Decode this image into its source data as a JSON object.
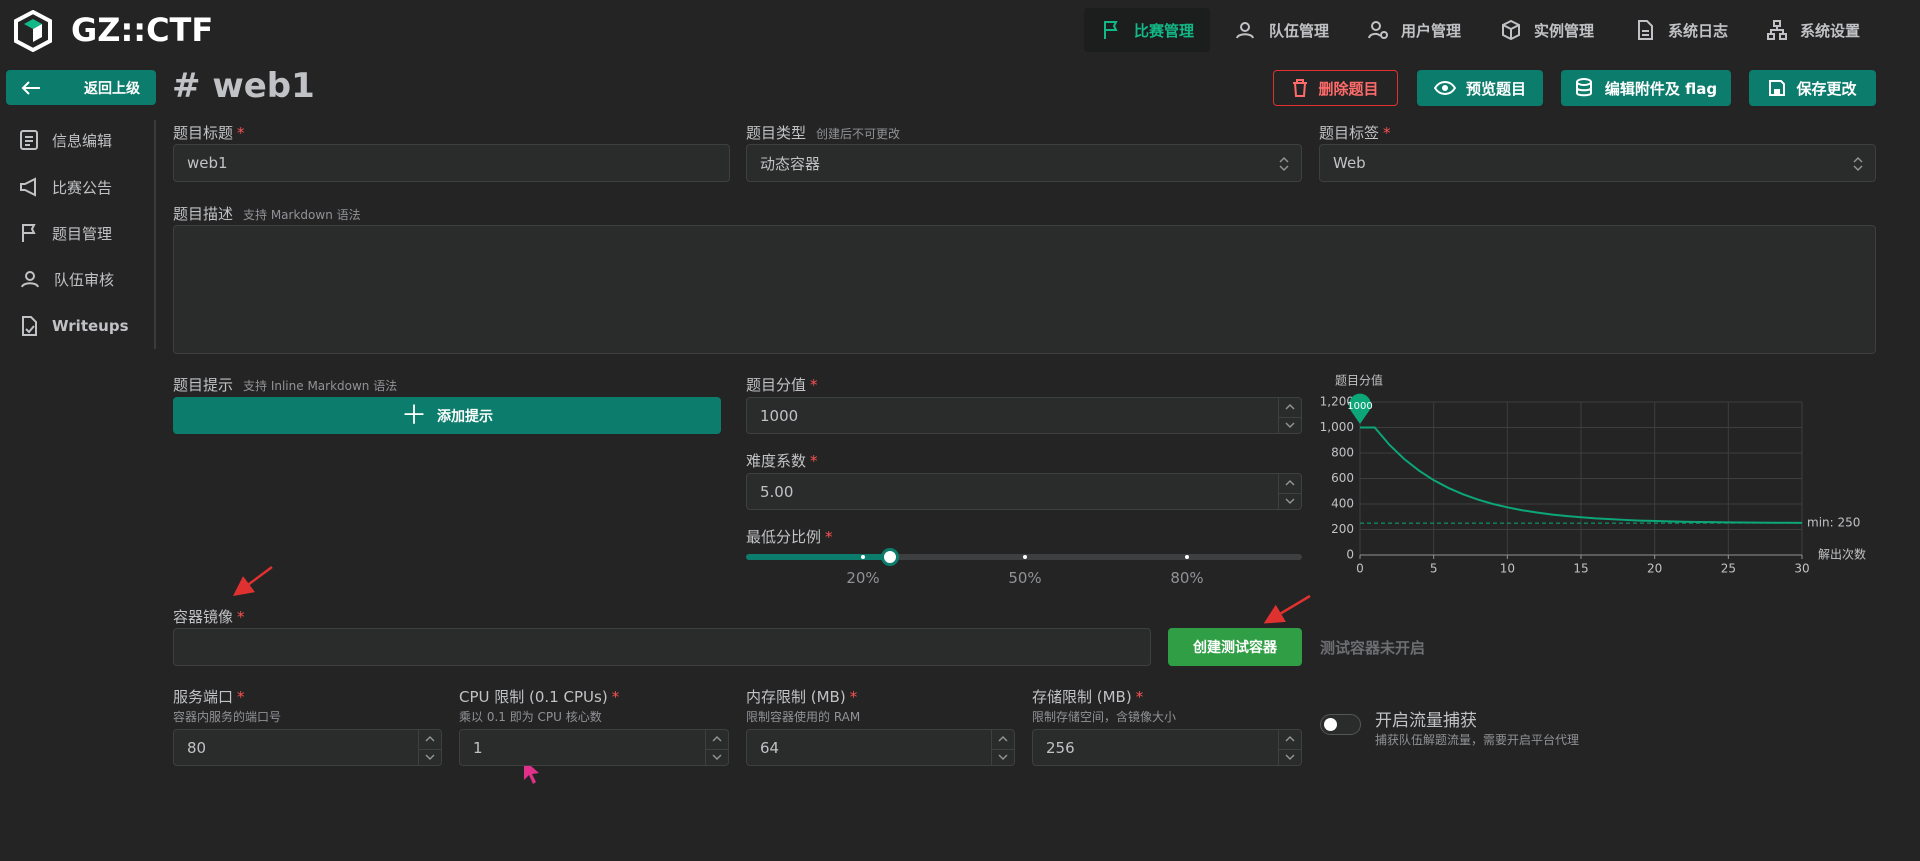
{
  "header": {
    "logo": "GZ::CTF",
    "nav": [
      "比赛管理",
      "队伍管理",
      "用户管理",
      "实例管理",
      "系统日志",
      "系统设置"
    ]
  },
  "sidebar": {
    "back": "返回上级",
    "items": [
      "信息编辑",
      "比赛公告",
      "题目管理",
      "队伍审核",
      "Writeups"
    ]
  },
  "page": {
    "title": "# web1",
    "actions": [
      "删除题目",
      "预览题目",
      "编辑附件及 flag",
      "保存更改"
    ]
  },
  "form": {
    "required_mark": "*",
    "title": {
      "label": "题目标题",
      "value": "web1"
    },
    "type": {
      "label": "题目类型",
      "hint": "创建后不可更改",
      "value": "动态容器"
    },
    "tag": {
      "label": "题目标签",
      "value": "Web"
    },
    "description": {
      "label": "题目描述",
      "hint": "支持 Markdown 语法"
    },
    "hints": {
      "label": "题目提示",
      "hint": "支持 Inline Markdown 语法",
      "button": "添加提示"
    },
    "score": {
      "label": "题目分值",
      "value": "1000"
    },
    "difficulty": {
      "label": "难度系数",
      "value": "5.00"
    },
    "min_score_ratio": {
      "label": "最低分比例",
      "marks": [
        "20%",
        "50%",
        "80%"
      ]
    },
    "image": {
      "label": "容器镜像",
      "button": "创建测试容器",
      "status": "测试容器未开启"
    },
    "port": {
      "label": "服务端口",
      "hint": "容器内服务的端口号",
      "value": "80"
    },
    "cpu": {
      "label": "CPU 限制 (0.1 CPUs)",
      "hint": "乘以 0.1 即为 CPU 核心数",
      "value": "1"
    },
    "memory": {
      "label": "内存限制 (MB)",
      "hint": "限制容器使用的 RAM",
      "value": "64"
    },
    "storage": {
      "label": "存储限制 (MB)",
      "hint": "限制存储空间，含镜像大小",
      "value": "256"
    },
    "traffic": {
      "label": "开启流量捕获",
      "hint": "捕获队伍解题流量，需要开启平台代理"
    }
  },
  "chart_data": {
    "type": "line",
    "title": "题目分值",
    "x_label": "解出次数",
    "x": [
      0,
      1,
      2,
      3,
      4,
      5,
      6,
      7,
      8,
      9,
      10,
      11,
      12,
      13,
      14,
      15,
      16,
      17,
      18,
      19,
      20,
      21,
      22,
      23,
      24,
      25,
      26,
      27,
      28,
      29,
      30
    ],
    "values": [
      1000,
      1000,
      864,
      753,
      662,
      587,
      526,
      476,
      435,
      401,
      374,
      351,
      333,
      318,
      306,
      296,
      287,
      281,
      275,
      270,
      267,
      264,
      261,
      259,
      258,
      256,
      255,
      254,
      253,
      253,
      252
    ],
    "color": "#0ca678",
    "xlim": [
      0,
      30
    ],
    "xticks": [
      0,
      5,
      10,
      15,
      20,
      25,
      30
    ],
    "ylim": [
      0,
      1200
    ],
    "yticks": [
      0,
      200,
      400,
      600,
      800,
      {
        "value": 1000,
        "label": "1,000"
      },
      {
        "value": 1200,
        "label": "1,200"
      }
    ],
    "grid": true,
    "max_point": 1000,
    "min_line": {
      "value": 250,
      "label": "min: 250"
    }
  }
}
